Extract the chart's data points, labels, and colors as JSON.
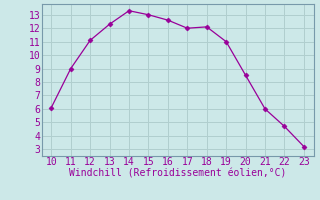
{
  "x": [
    10,
    11,
    12,
    13,
    14,
    15,
    16,
    17,
    18,
    19,
    20,
    21,
    22,
    23
  ],
  "y": [
    6.1,
    9.0,
    11.1,
    12.3,
    13.3,
    13.0,
    12.6,
    12.0,
    12.1,
    11.0,
    8.5,
    6.0,
    4.7,
    3.2
  ],
  "line_color": "#990099",
  "marker": "D",
  "marker_size": 2.5,
  "bg_color": "#cce8e8",
  "grid_color": "#b0cece",
  "xlabel": "Windchill (Refroidissement éolien,°C)",
  "xlabel_color": "#990099",
  "tick_color": "#990099",
  "xlim": [
    9.5,
    23.5
  ],
  "ylim": [
    2.5,
    13.8
  ],
  "xticks": [
    10,
    11,
    12,
    13,
    14,
    15,
    16,
    17,
    18,
    19,
    20,
    21,
    22,
    23
  ],
  "yticks": [
    3,
    4,
    5,
    6,
    7,
    8,
    9,
    10,
    11,
    12,
    13
  ],
  "xlabel_fontsize": 7,
  "tick_fontsize": 7,
  "spine_color": "#7799aa"
}
